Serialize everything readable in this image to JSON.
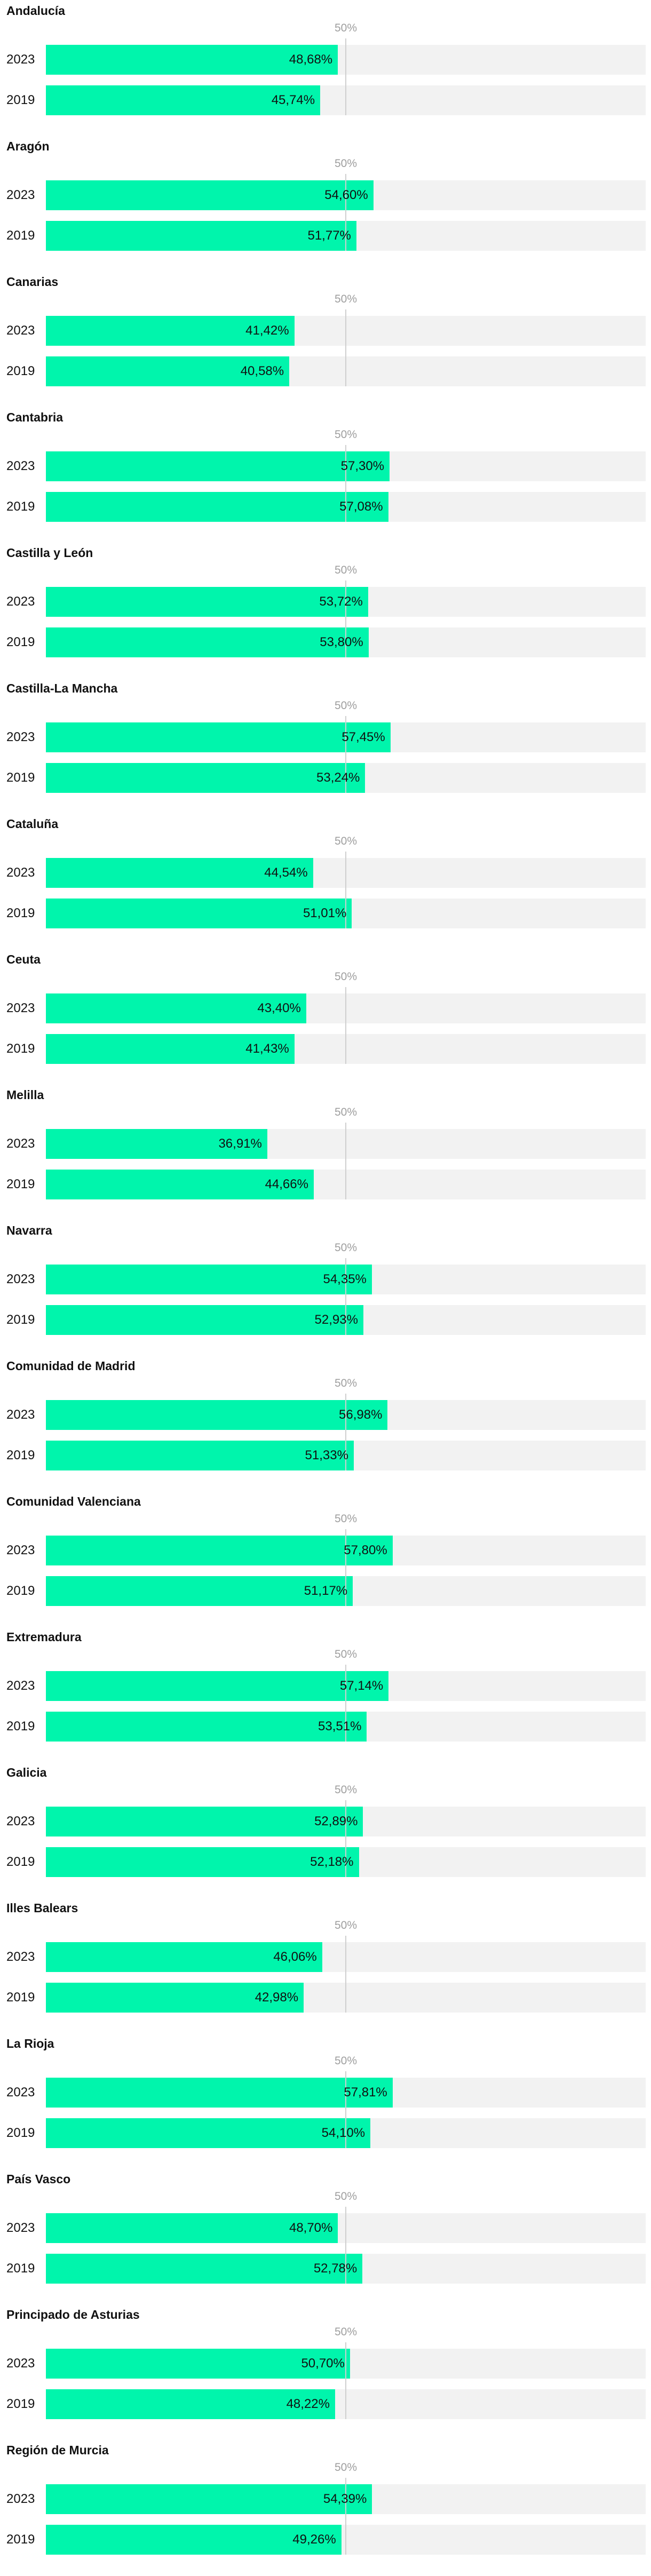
{
  "colors": {
    "bar": "#00f5ac",
    "track": "#f2f2f2",
    "reference_line": "#cfcfcf",
    "reference_label": "#9e9e9e"
  },
  "chart_data": {
    "type": "bar",
    "orientation": "horizontal",
    "xlim": [
      0,
      100
    ],
    "reference_line": {
      "value": 50,
      "label": "50%"
    },
    "series_labels": [
      "2023",
      "2019"
    ],
    "groups": [
      {
        "name": "Andalucía",
        "rows": [
          {
            "year": "2023",
            "value": 48.68,
            "label": "48,68%"
          },
          {
            "year": "2019",
            "value": 45.74,
            "label": "45,74%"
          }
        ]
      },
      {
        "name": "Aragón",
        "rows": [
          {
            "year": "2023",
            "value": 54.6,
            "label": "54,60%"
          },
          {
            "year": "2019",
            "value": 51.77,
            "label": "51,77%"
          }
        ]
      },
      {
        "name": "Canarias",
        "rows": [
          {
            "year": "2023",
            "value": 41.42,
            "label": "41,42%"
          },
          {
            "year": "2019",
            "value": 40.58,
            "label": "40,58%"
          }
        ]
      },
      {
        "name": "Cantabria",
        "rows": [
          {
            "year": "2023",
            "value": 57.3,
            "label": "57,30%"
          },
          {
            "year": "2019",
            "value": 57.08,
            "label": "57,08%"
          }
        ]
      },
      {
        "name": "Castilla y León",
        "rows": [
          {
            "year": "2023",
            "value": 53.72,
            "label": "53,72%"
          },
          {
            "year": "2019",
            "value": 53.8,
            "label": "53,80%"
          }
        ]
      },
      {
        "name": "Castilla-La Mancha",
        "rows": [
          {
            "year": "2023",
            "value": 57.45,
            "label": "57,45%"
          },
          {
            "year": "2019",
            "value": 53.24,
            "label": "53,24%"
          }
        ]
      },
      {
        "name": "Cataluña",
        "rows": [
          {
            "year": "2023",
            "value": 44.54,
            "label": "44,54%"
          },
          {
            "year": "2019",
            "value": 51.01,
            "label": "51,01%"
          }
        ]
      },
      {
        "name": "Ceuta",
        "rows": [
          {
            "year": "2023",
            "value": 43.4,
            "label": "43,40%"
          },
          {
            "year": "2019",
            "value": 41.43,
            "label": "41,43%"
          }
        ]
      },
      {
        "name": "Melilla",
        "rows": [
          {
            "year": "2023",
            "value": 36.91,
            "label": "36,91%"
          },
          {
            "year": "2019",
            "value": 44.66,
            "label": "44,66%"
          }
        ]
      },
      {
        "name": "Navarra",
        "rows": [
          {
            "year": "2023",
            "value": 54.35,
            "label": "54,35%"
          },
          {
            "year": "2019",
            "value": 52.93,
            "label": "52,93%"
          }
        ]
      },
      {
        "name": "Comunidad de Madrid",
        "rows": [
          {
            "year": "2023",
            "value": 56.98,
            "label": "56,98%"
          },
          {
            "year": "2019",
            "value": 51.33,
            "label": "51,33%"
          }
        ]
      },
      {
        "name": "Comunidad Valenciana",
        "rows": [
          {
            "year": "2023",
            "value": 57.8,
            "label": "57,80%"
          },
          {
            "year": "2019",
            "value": 51.17,
            "label": "51,17%"
          }
        ]
      },
      {
        "name": "Extremadura",
        "rows": [
          {
            "year": "2023",
            "value": 57.14,
            "label": "57,14%"
          },
          {
            "year": "2019",
            "value": 53.51,
            "label": "53,51%"
          }
        ]
      },
      {
        "name": "Galicia",
        "rows": [
          {
            "year": "2023",
            "value": 52.89,
            "label": "52,89%"
          },
          {
            "year": "2019",
            "value": 52.18,
            "label": "52,18%"
          }
        ]
      },
      {
        "name": "Illes Balears",
        "rows": [
          {
            "year": "2023",
            "value": 46.06,
            "label": "46,06%"
          },
          {
            "year": "2019",
            "value": 42.98,
            "label": "42,98%"
          }
        ]
      },
      {
        "name": "La Rioja",
        "rows": [
          {
            "year": "2023",
            "value": 57.81,
            "label": "57,81%"
          },
          {
            "year": "2019",
            "value": 54.1,
            "label": "54,10%"
          }
        ]
      },
      {
        "name": "País Vasco",
        "rows": [
          {
            "year": "2023",
            "value": 48.7,
            "label": "48,70%"
          },
          {
            "year": "2019",
            "value": 52.78,
            "label": "52,78%"
          }
        ]
      },
      {
        "name": "Principado de Asturias",
        "rows": [
          {
            "year": "2023",
            "value": 50.7,
            "label": "50,70%"
          },
          {
            "year": "2019",
            "value": 48.22,
            "label": "48,22%"
          }
        ]
      },
      {
        "name": "Región de Murcia",
        "rows": [
          {
            "year": "2023",
            "value": 54.39,
            "label": "54,39%"
          },
          {
            "year": "2019",
            "value": 49.26,
            "label": "49,26%"
          }
        ]
      }
    ]
  }
}
